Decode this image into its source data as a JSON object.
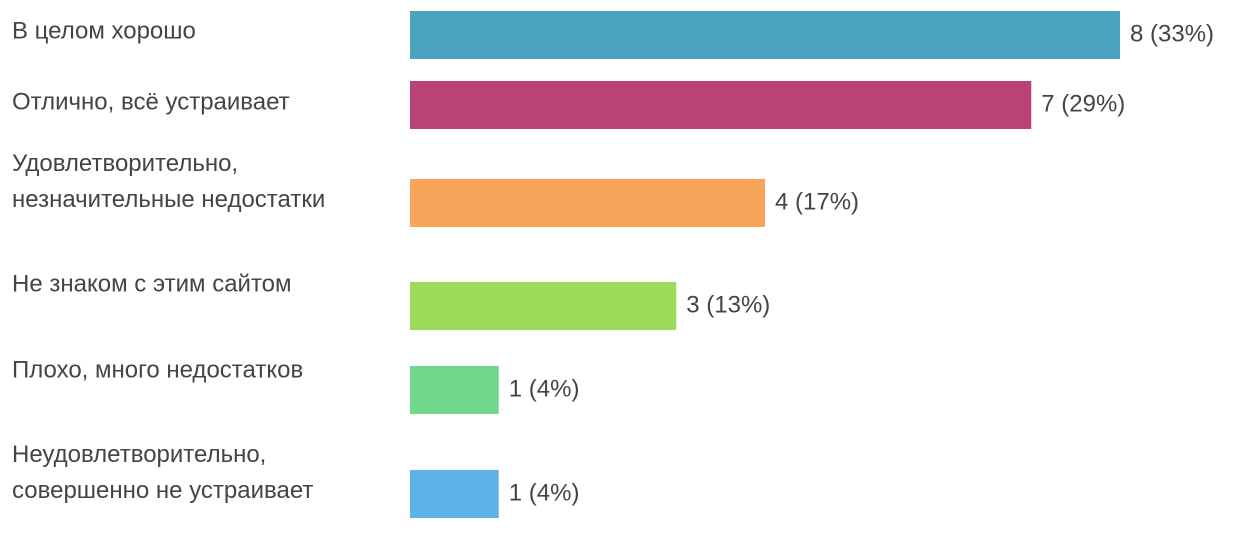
{
  "chart_data": {
    "type": "bar",
    "orientation": "horizontal",
    "categories": [
      "В целом хорошо",
      "Отлично, всё устраивает",
      "Удовлетворительно, незначительные недостатки",
      "Не знаком с этим сайтом",
      "Плохо, много недостатков",
      "Неудовлетворительно, совершенно не устраивает"
    ],
    "values": [
      8,
      7,
      4,
      3,
      1,
      1
    ],
    "value_labels": [
      "8 (33%)",
      "7 (29%)",
      "4 (17%)",
      "3 (13%)",
      "1 (4%)",
      "1 (4%)"
    ],
    "colors": [
      "#4aa3bf",
      "#b94277",
      "#f8a55c",
      "#9ddc58",
      "#72d78d",
      "#5fb2e8"
    ]
  }
}
